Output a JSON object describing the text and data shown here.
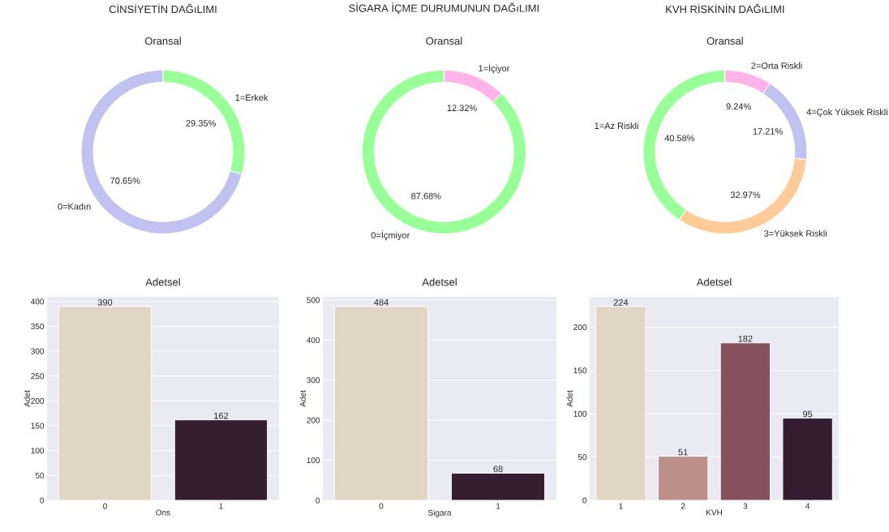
{
  "chart_data": [
    {
      "type": "donut",
      "title": "CİNSİYETİN DAĞıLIMI",
      "subtitle": "Oransal",
      "categories": [
        "0=Kadın",
        "1=Erkek"
      ],
      "values": [
        70.65,
        29.35
      ],
      "colors": [
        "#c2c2f0",
        "#99ff99"
      ],
      "value_labels": [
        "70.65%",
        "29.35%"
      ]
    },
    {
      "type": "donut",
      "title": "SİGARA İÇME DURUMUNUN DAĞıLIMI",
      "subtitle": "Oransal",
      "categories": [
        "0=İçmiyor",
        "1=İçiyor"
      ],
      "values": [
        87.68,
        12.32
      ],
      "colors": [
        "#99ff99",
        "#ffb3e6"
      ],
      "value_labels": [
        "87.68%",
        "12.32%"
      ]
    },
    {
      "type": "donut",
      "title": "KVH RİSKİNİN DAĞıLIMI",
      "subtitle": "Oransal",
      "categories": [
        "1=Az Riskli",
        "3=Yüksek Riskli",
        "4=Çok Yüksek Riskli",
        "2=Orta Riskli"
      ],
      "values": [
        40.58,
        32.97,
        17.21,
        9.24
      ],
      "colors": [
        "#99ff99",
        "#ffcc99",
        "#c2c2f0",
        "#ffb3e6"
      ],
      "value_labels": [
        "40.58%",
        "32.97%",
        "17.21%",
        "9.24%"
      ]
    },
    {
      "type": "bar",
      "title": "Adetsel",
      "xlabel": "Ons",
      "ylabel": "Adet",
      "categories": [
        "0",
        "1"
      ],
      "values": [
        390,
        162
      ],
      "colors": [
        "#e1d5c6",
        "#341e30"
      ],
      "ylim": [
        0,
        409.5
      ],
      "yticks": [
        0,
        50,
        100,
        150,
        200,
        250,
        300,
        350,
        400
      ],
      "grid": "y",
      "data_labels": true
    },
    {
      "type": "bar",
      "title": "Adetsel",
      "xlabel": "Sigara",
      "ylabel": "Adet",
      "categories": [
        "0",
        "1"
      ],
      "values": [
        484,
        68
      ],
      "colors": [
        "#e1d5c6",
        "#341e30"
      ],
      "ylim": [
        0,
        508.2
      ],
      "yticks": [
        0,
        100,
        200,
        300,
        400,
        500
      ],
      "grid": "y",
      "data_labels": true
    },
    {
      "type": "bar",
      "title": "Adetsel",
      "xlabel": "KVH",
      "ylabel": "Adet",
      "categories": [
        "1",
        "2",
        "3",
        "4"
      ],
      "values": [
        224,
        51,
        182,
        95
      ],
      "colors": [
        "#e1d5c6",
        "#bc9089",
        "#84525f",
        "#341d30"
      ],
      "ylim": [
        0,
        235.2
      ],
      "yticks": [
        0,
        50,
        100,
        150,
        200
      ],
      "grid": "y",
      "data_labels": true
    }
  ]
}
